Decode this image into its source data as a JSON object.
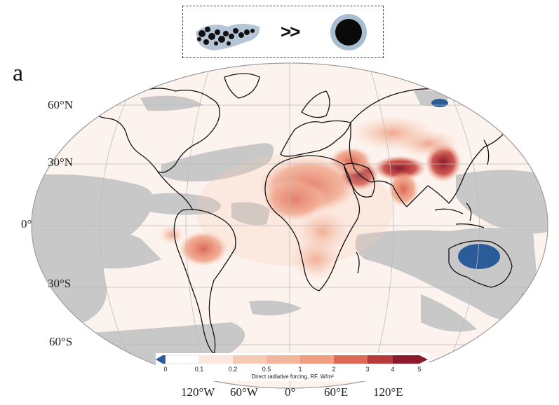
{
  "panel_letter": "a",
  "lat_labels": [
    "60°N",
    "30°N",
    "0°",
    "30°S",
    "60°S"
  ],
  "lon_labels": [
    "120°W",
    "60°W",
    "0°",
    "60°E",
    "120°E"
  ],
  "inset": {
    "comparison_symbol": ">>"
  },
  "colorbar": {
    "title": "Direct radiative forcing, RF, W/m²",
    "ticks": [
      "0",
      "0.1",
      "0.2",
      "0.5",
      "1",
      "2",
      "3",
      "4",
      "5"
    ],
    "colors": [
      "#2b5c9a",
      "#ffffff",
      "#fbe7dd",
      "#f6c9b3",
      "#ef9e82",
      "#dc6a55",
      "#b93a3a",
      "#8c1a2b"
    ]
  },
  "colors": {
    "ocean_gray": "#c8c8c8",
    "background": "#fdf3ee",
    "coast": "#111111"
  }
}
